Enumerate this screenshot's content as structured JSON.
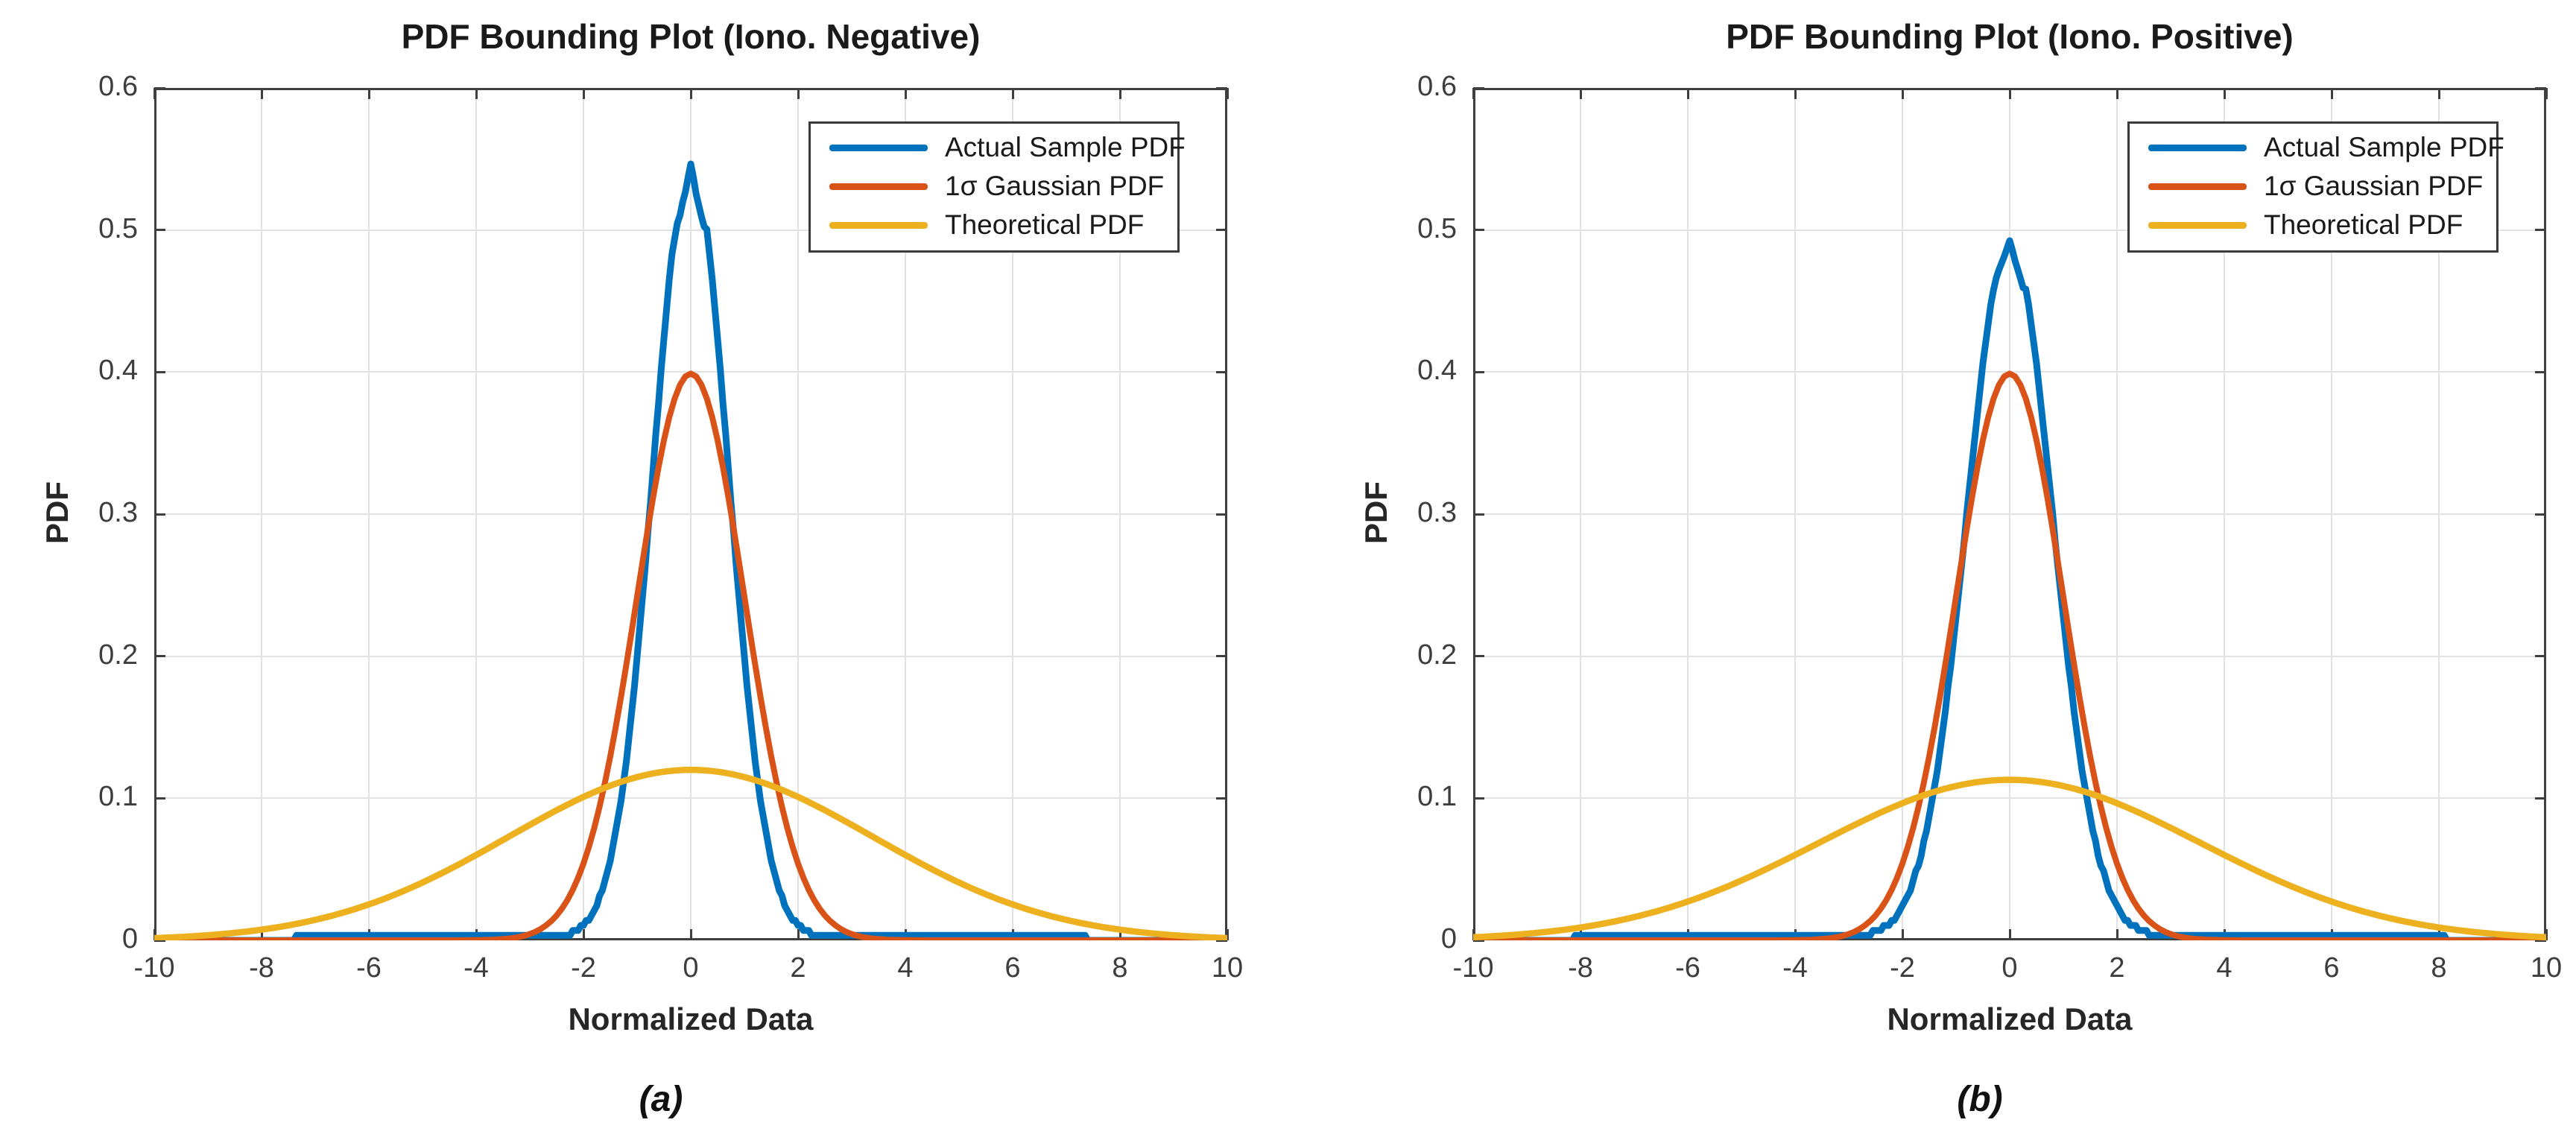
{
  "page": {
    "background": "#ffffff",
    "grid_color": "#e2e2e2",
    "axis_color": "#3f3f3f",
    "text_color": "#262626"
  },
  "chart_data": [
    {
      "type": "line",
      "title": "PDF Bounding Plot (Iono. Negative)",
      "xlabel": "Normalized Data",
      "ylabel": "PDF",
      "caption": "(a)",
      "xlim": [
        -10,
        10
      ],
      "ylim": [
        0,
        0.6
      ],
      "x_ticks": [
        -10,
        -8,
        -6,
        -4,
        -2,
        0,
        2,
        4,
        6,
        8,
        10
      ],
      "x_tick_labels": [
        "-10",
        "-8",
        "-6",
        "-4",
        "-2",
        "0",
        "2",
        "4",
        "6",
        "8",
        "10"
      ],
      "y_ticks": [
        0,
        0.1,
        0.2,
        0.3,
        0.4,
        0.5,
        0.6
      ],
      "y_tick_labels": [
        "0",
        "0.1",
        "0.2",
        "0.3",
        "0.4",
        "0.5",
        "0.6"
      ],
      "grid": true,
      "legend_position": "top-right",
      "series": [
        {
          "name": "Actual Sample PDF",
          "color": "#0072BD",
          "line_width": 9,
          "style": "steppy",
          "model": {
            "kind": "gaussian",
            "mean": 0,
            "peak": 0.545,
            "sigma": 0.7,
            "tail": 0.002,
            "notch": [
              [
                -0.3,
                0.494
              ],
              [
                -0.24,
                0.507
              ],
              [
                -0.18,
                0.512
              ],
              [
                -0.13,
                0.525
              ],
              [
                -0.08,
                0.528
              ],
              [
                -0.04,
                0.54
              ],
              [
                0,
                0.5465
              ],
              [
                0.04,
                0.54
              ],
              [
                0.08,
                0.528
              ],
              [
                0.13,
                0.521
              ],
              [
                0.18,
                0.512
              ],
              [
                0.24,
                0.504
              ],
              [
                0.3,
                0.494
              ]
            ]
          },
          "sample_points": [
            [
              -10,
              0
            ],
            [
              -9,
              0.001
            ],
            [
              -8,
              0.002
            ],
            [
              -7,
              0.002
            ],
            [
              -6,
              0.002
            ],
            [
              -5,
              0.002
            ],
            [
              -4,
              0.0025
            ],
            [
              -3,
              0.0025
            ],
            [
              -2,
              0.011
            ],
            [
              -1.5,
              0.0568
            ],
            [
              -1,
              0.198
            ],
            [
              -0.5,
              0.424
            ],
            [
              0,
              0.5465
            ],
            [
              0.5,
              0.424
            ],
            [
              1,
              0.198
            ],
            [
              1.5,
              0.0568
            ],
            [
              2,
              0.011
            ],
            [
              3,
              0.0025
            ],
            [
              4,
              0.0025
            ],
            [
              5,
              0.002
            ],
            [
              6,
              0.002
            ],
            [
              7,
              0.002
            ],
            [
              8,
              0.002
            ],
            [
              9,
              0.001
            ],
            [
              10,
              0
            ]
          ]
        },
        {
          "name": "1σ Gaussian PDF",
          "color": "#D95319",
          "line_width": 8,
          "style": "smooth",
          "model": {
            "kind": "gaussian",
            "mean": 0,
            "peak": 0.3989,
            "sigma": 1.0,
            "tail": 0
          },
          "sample_points": [
            [
              -10,
              0
            ],
            [
              -8,
              0
            ],
            [
              -6,
              0
            ],
            [
              -5,
              0
            ],
            [
              -4,
              0.0001
            ],
            [
              -3,
              0.0044
            ],
            [
              -2,
              0.054
            ],
            [
              -1,
              0.242
            ],
            [
              0,
              0.3989
            ],
            [
              1,
              0.242
            ],
            [
              2,
              0.054
            ],
            [
              3,
              0.0044
            ],
            [
              4,
              0.0001
            ],
            [
              5,
              0
            ],
            [
              6,
              0
            ],
            [
              8,
              0
            ],
            [
              10,
              0
            ]
          ]
        },
        {
          "name": "Theoretical PDF",
          "color": "#EDB120",
          "line_width": 8.5,
          "style": "smooth",
          "model": {
            "kind": "gaussian",
            "mean": 0,
            "peak": 0.12,
            "sigma": 3.4,
            "tail": 0
          },
          "sample_points": [
            [
              -10,
              0.0016
            ],
            [
              -9,
              0.0036
            ],
            [
              -8,
              0.0075
            ],
            [
              -7,
              0.0144
            ],
            [
              -6,
              0.0253
            ],
            [
              -5,
              0.0407
            ],
            [
              -4,
              0.0601
            ],
            [
              -3,
              0.0813
            ],
            [
              -2,
              0.1009
            ],
            [
              -1,
              0.1149
            ],
            [
              0,
              0.12
            ],
            [
              1,
              0.1149
            ],
            [
              2,
              0.1009
            ],
            [
              3,
              0.0813
            ],
            [
              4,
              0.0601
            ],
            [
              5,
              0.0407
            ],
            [
              6,
              0.0253
            ],
            [
              7,
              0.0144
            ],
            [
              8,
              0.0075
            ],
            [
              9,
              0.0036
            ],
            [
              10,
              0.0016
            ]
          ]
        }
      ]
    },
    {
      "type": "line",
      "title": "PDF Bounding Plot (Iono. Positive)",
      "xlabel": "Normalized Data",
      "ylabel": "PDF",
      "caption": "(b)",
      "xlim": [
        -10,
        10
      ],
      "ylim": [
        0,
        0.6
      ],
      "x_ticks": [
        -10,
        -8,
        -6,
        -4,
        -2,
        0,
        2,
        4,
        6,
        8,
        10
      ],
      "x_tick_labels": [
        "-10",
        "-8",
        "-6",
        "-4",
        "-2",
        "0",
        "2",
        "4",
        "6",
        "8",
        "10"
      ],
      "y_ticks": [
        0,
        0.1,
        0.2,
        0.3,
        0.4,
        0.5,
        0.6
      ],
      "y_tick_labels": [
        "0",
        "0.1",
        "0.2",
        "0.3",
        "0.4",
        "0.5",
        "0.6"
      ],
      "grid": true,
      "legend_position": "top-right",
      "series": [
        {
          "name": "Actual Sample PDF",
          "color": "#0072BD",
          "line_width": 9,
          "style": "steppy",
          "model": {
            "kind": "gaussian",
            "mean": 0,
            "peak": 0.49,
            "sigma": 0.8,
            "tail": 0.0025,
            "notch": [
              [
                -0.3,
                0.458
              ],
              [
                -0.24,
                0.468
              ],
              [
                -0.18,
                0.474
              ],
              [
                -0.12,
                0.4795
              ],
              [
                -0.07,
                0.4845
              ],
              [
                -0.03,
                0.4895
              ],
              [
                0,
                0.4925
              ],
              [
                0.04,
                0.4875
              ],
              [
                0.09,
                0.4795
              ],
              [
                0.14,
                0.4735
              ],
              [
                0.2,
                0.466
              ],
              [
                0.26,
                0.458
              ],
              [
                0.3,
                0.452
              ]
            ]
          },
          "sample_points": [
            [
              -10,
              0
            ],
            [
              -9,
              0.0015
            ],
            [
              -8,
              0.0025
            ],
            [
              -7,
              0.0025
            ],
            [
              -6,
              0.0025
            ],
            [
              -5,
              0.0025
            ],
            [
              -4,
              0.003
            ],
            [
              -3,
              0.003
            ],
            [
              -2,
              0.024
            ],
            [
              -1.5,
              0.0869
            ],
            [
              -1,
              0.227
            ],
            [
              -0.5,
              0.406
            ],
            [
              0,
              0.4925
            ],
            [
              0.5,
              0.406
            ],
            [
              1,
              0.227
            ],
            [
              1.5,
              0.0869
            ],
            [
              2,
              0.024
            ],
            [
              3,
              0.003
            ],
            [
              4,
              0.0025
            ],
            [
              5,
              0.0025
            ],
            [
              6,
              0.0025
            ],
            [
              7,
              0.0025
            ],
            [
              8,
              0.0025
            ],
            [
              9,
              0.0015
            ],
            [
              10,
              0
            ]
          ]
        },
        {
          "name": "1σ Gaussian PDF",
          "color": "#D95319",
          "line_width": 8,
          "style": "smooth",
          "model": {
            "kind": "gaussian",
            "mean": 0,
            "peak": 0.3989,
            "sigma": 1.0,
            "tail": 0
          },
          "sample_points": [
            [
              -10,
              0
            ],
            [
              -8,
              0
            ],
            [
              -6,
              0
            ],
            [
              -5,
              0
            ],
            [
              -4,
              0.0001
            ],
            [
              -3,
              0.0044
            ],
            [
              -2,
              0.054
            ],
            [
              -1,
              0.242
            ],
            [
              0,
              0.3989
            ],
            [
              1,
              0.242
            ],
            [
              2,
              0.054
            ],
            [
              3,
              0.0044
            ],
            [
              4,
              0.0001
            ],
            [
              5,
              0
            ],
            [
              6,
              0
            ],
            [
              8,
              0
            ],
            [
              10,
              0
            ]
          ]
        },
        {
          "name": "Theoretical PDF",
          "color": "#EDB120",
          "line_width": 8.5,
          "style": "smooth",
          "model": {
            "kind": "gaussian",
            "mean": 0,
            "peak": 0.113,
            "sigma": 3.56,
            "tail": 0
          },
          "sample_points": [
            [
              -10,
              0.0022
            ],
            [
              -9,
              0.0046
            ],
            [
              -8,
              0.009
            ],
            [
              -7,
              0.0164
            ],
            [
              -6,
              0.0273
            ],
            [
              -5,
              0.0421
            ],
            [
              -4,
              0.0601
            ],
            [
              -3,
              0.0793
            ],
            [
              -2,
              0.0965
            ],
            [
              -1,
              0.1086
            ],
            [
              0,
              0.113
            ],
            [
              1,
              0.1086
            ],
            [
              2,
              0.0965
            ],
            [
              3,
              0.0793
            ],
            [
              4,
              0.0601
            ],
            [
              5,
              0.0421
            ],
            [
              6,
              0.0273
            ],
            [
              7,
              0.0164
            ],
            [
              8,
              0.009
            ],
            [
              9,
              0.0046
            ],
            [
              10,
              0.0022
            ]
          ]
        }
      ]
    }
  ]
}
